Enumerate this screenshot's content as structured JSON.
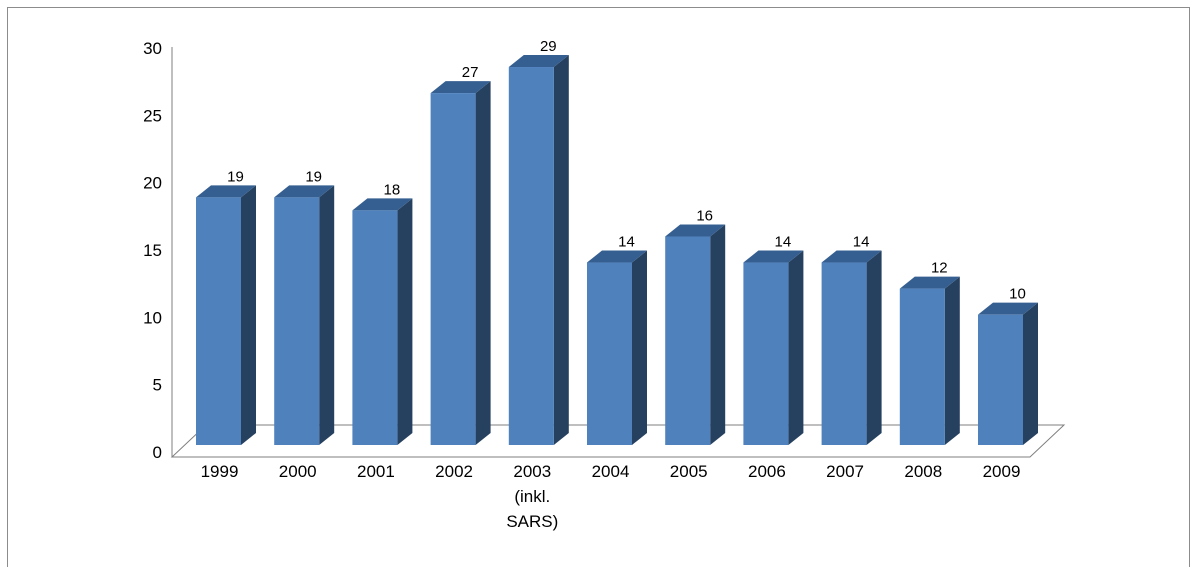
{
  "chart_data": {
    "type": "bar",
    "style": "3d-column",
    "categories": [
      [
        "1999"
      ],
      [
        "2000"
      ],
      [
        "2001"
      ],
      [
        "2002"
      ],
      [
        "2003",
        "(inkl.",
        "SARS)"
      ],
      [
        "2004"
      ],
      [
        "2005"
      ],
      [
        "2006"
      ],
      [
        "2007"
      ],
      [
        "2008"
      ],
      [
        "2009"
      ]
    ],
    "values": [
      19,
      19,
      18,
      27,
      29,
      14,
      16,
      14,
      14,
      12,
      10
    ],
    "data_labels": [
      "19",
      "19",
      "18",
      "27",
      "29",
      "14",
      "16",
      "14",
      "14",
      "12",
      "10"
    ],
    "title": "",
    "xlabel": "",
    "ylabel": "",
    "ylim": [
      0,
      30
    ],
    "yticks": [
      "0",
      "5",
      "10",
      "15",
      "20",
      "25",
      "30"
    ],
    "grid": false,
    "legend": "none",
    "colors": {
      "bar_front": "#4f81bd",
      "bar_side": "#26415f",
      "bar_top": "#365f91",
      "floor": "#7f7f7f",
      "frame": "#8c8c8c"
    }
  }
}
